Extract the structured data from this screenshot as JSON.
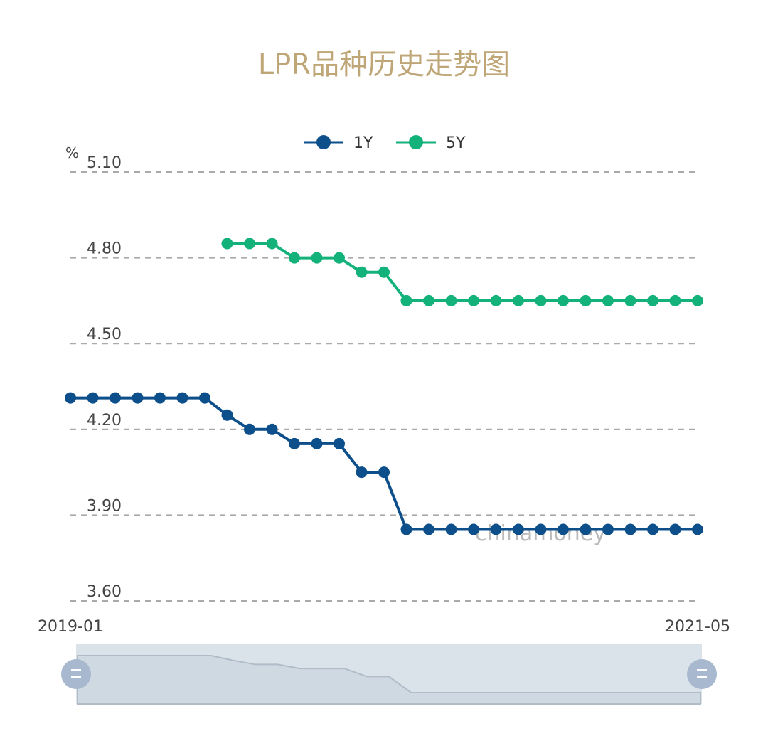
{
  "chart_data": {
    "type": "line",
    "title": "LPR品种历史走势图",
    "ylabel": "%",
    "ylim": [
      3.6,
      5.1
    ],
    "yticks": [
      "5.10",
      "4.80",
      "4.50",
      "4.20",
      "3.90",
      "3.60"
    ],
    "ytick_values": [
      5.1,
      4.8,
      4.5,
      4.2,
      3.9,
      3.6
    ],
    "grid": true,
    "legend_position": "top-center",
    "xtick_labels": [
      "2019-01",
      "2021-05"
    ],
    "x": [
      "2019-01",
      "2019-02",
      "2019-03",
      "2019-04",
      "2019-05",
      "2019-06",
      "2019-07",
      "2019-08",
      "2019-09",
      "2019-10",
      "2019-11",
      "2019-12",
      "2020-01",
      "2020-02",
      "2020-03",
      "2020-04",
      "2020-05",
      "2020-06",
      "2020-07",
      "2020-08",
      "2020-09",
      "2020-10",
      "2020-11",
      "2020-12",
      "2021-01",
      "2021-02",
      "2021-03",
      "2021-04",
      "2021-05"
    ],
    "series": [
      {
        "name": "1Y",
        "color": "#0d4f8b",
        "values": [
          4.31,
          4.31,
          4.31,
          4.31,
          4.31,
          4.31,
          4.31,
          4.25,
          4.2,
          4.2,
          4.15,
          4.15,
          4.15,
          4.05,
          4.05,
          3.85,
          3.85,
          3.85,
          3.85,
          3.85,
          3.85,
          3.85,
          3.85,
          3.85,
          3.85,
          3.85,
          3.85,
          3.85,
          3.85
        ]
      },
      {
        "name": "5Y",
        "color": "#13b27a",
        "values": [
          null,
          null,
          null,
          null,
          null,
          null,
          null,
          4.85,
          4.85,
          4.85,
          4.8,
          4.8,
          4.8,
          4.75,
          4.75,
          4.65,
          4.65,
          4.65,
          4.65,
          4.65,
          4.65,
          4.65,
          4.65,
          4.65,
          4.65,
          4.65,
          4.65,
          4.65,
          4.65
        ]
      }
    ],
    "watermark": "chinamoney",
    "zoom_slider": {
      "start": 0,
      "end": 100
    }
  }
}
